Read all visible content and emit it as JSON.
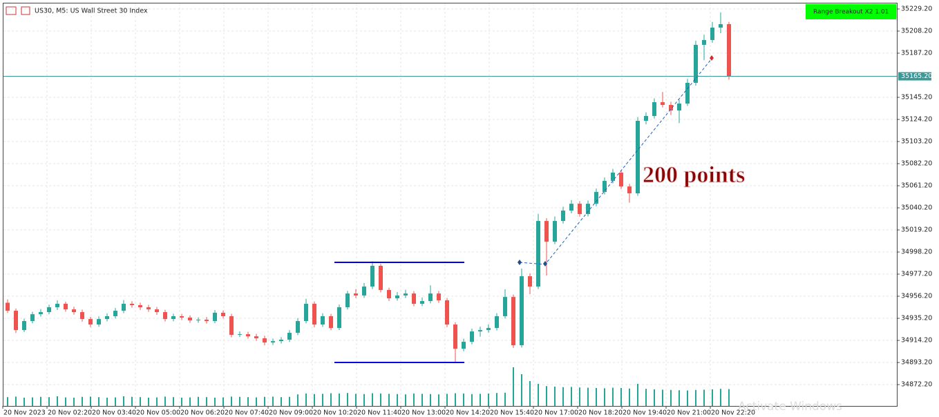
{
  "chart_data": {
    "type": "candlestick",
    "title": "US30, M5:  US Wall Street 30 Index",
    "indicator": "Range Breakout X2 1.01",
    "annotations": [
      "200 points"
    ],
    "watermark": "Activate Windows",
    "up_color": "#26a69a",
    "down_color": "#ef5350",
    "grid": true,
    "ylim": [
      34851.9,
      35234.45
    ],
    "yticks": [
      {
        "value": 35229.2,
        "label": "35229.20"
      },
      {
        "value": 35208.2,
        "label": "35208.20"
      },
      {
        "value": 35187.2,
        "label": "35187.20"
      },
      {
        "value": 35145.2,
        "label": "35145.20"
      },
      {
        "value": 35124.2,
        "label": "35124.20"
      },
      {
        "value": 35103.2,
        "label": "35103.20"
      },
      {
        "value": 35082.2,
        "label": "35082.20"
      },
      {
        "value": 35061.2,
        "label": "35061.20"
      },
      {
        "value": 35040.2,
        "label": "35040.20"
      },
      {
        "value": 35019.2,
        "label": "35019.20"
      },
      {
        "value": 34998.2,
        "label": "34998.20"
      },
      {
        "value": 34977.2,
        "label": "34977.20"
      },
      {
        "value": 34956.2,
        "label": "34956.20"
      },
      {
        "value": 34935.2,
        "label": "34935.20"
      },
      {
        "value": 34914.2,
        "label": "34914.20"
      },
      {
        "value": 34893.2,
        "label": "34893.20"
      },
      {
        "value": 34872.2,
        "label": "34872.20"
      }
    ],
    "current_price": {
      "value": 35165.2,
      "label": "35165.20"
    },
    "range_levels": [
      34988.4,
      34893.2
    ],
    "x_labels": [
      "20 Nov 2023",
      "20 Nov 02:20",
      "20 Nov 03:40",
      "20 Nov 05:00",
      "20 Nov 06:20",
      "20 Nov 07:40",
      "20 Nov 09:00",
      "20 Nov 10:20",
      "20 Nov 11:40",
      "20 Nov 13:00",
      "20 Nov 14:20",
      "20 Nov 15:40",
      "20 Nov 17:00",
      "20 Nov 18:20",
      "20 Nov 19:40",
      "20 Nov 21:00",
      "20 Nov 22:20"
    ],
    "open": [
      34950.0,
      34942.4,
      34924.0,
      34932.6,
      34939.1,
      34941.1,
      34945.7,
      34949.0,
      34943.7,
      34941.1,
      34934.5,
      34929.3,
      34934.5,
      34937.2,
      34942.4,
      34949.0,
      34947.7,
      34945.7,
      34943.7,
      34941.1,
      34934.5,
      34937.2,
      34935.9,
      34933.2,
      34933.9,
      34932.6,
      34940.5,
      34937.2,
      34919.5,
      34920.1,
      34918.1,
      34916.2,
      34912.2,
      34913.5,
      34914.9,
      34921.4,
      34932.6,
      34949.0,
      34929.3,
      34937.2,
      34926.0,
      34945.7,
      34958.8,
      34956.9,
      34965.4,
      34985.1,
      34962.1,
      34954.2,
      34956.9,
      34958.8,
      34949.0,
      34951.6,
      34958.8,
      34952.3,
      34929.3,
      34906.3,
      34912.9,
      34922.7,
      34924.0,
      34926.0,
      34937.2,
      34955.5,
      34909.6,
      34975.2,
      34965.4,
      35027.7,
      35008.0,
      35027.7,
      35037.6,
      35044.1,
      35034.3,
      35044.1,
      35055.3,
      35065.8,
      35073.7,
      35060.5,
      35054.0,
      35122.9,
      35127.5,
      35140.6,
      35138.0,
      35132.7,
      35139.3,
      35159.0,
      35195.1,
      35199.7,
      35211.5,
      35214.8
    ],
    "high": [
      34953.1,
      34944.5,
      34934.8,
      34941.5,
      34944.0,
      34948.2,
      34952.3,
      34951.0,
      34946.2,
      34943.4,
      34936.6,
      34937.0,
      34939.9,
      34945.0,
      34952.6,
      34951.4,
      34950.1,
      34948.0,
      34946.0,
      34943.3,
      34939.6,
      34939.4,
      34938.0,
      34936.1,
      34936.4,
      34943.0,
      34942.6,
      34939.5,
      34922.8,
      34922.4,
      34920.5,
      34918.7,
      34916.0,
      34917.3,
      34924.0,
      34935.3,
      34953.8,
      34951.2,
      34940.1,
      34939.4,
      34948.3,
      34961.2,
      34963.0,
      34968.8,
      34989.4,
      34987.0,
      34964.3,
      34960.2,
      34962.4,
      34961.0,
      34955.0,
      34966.5,
      34961.2,
      34954.6,
      34931.5,
      34915.8,
      34925.4,
      34927.3,
      34929.4,
      34940.1,
      34962.8,
      34957.8,
      34982.5,
      34978.0,
      35034.6,
      35030.4,
      35032.0,
      35041.3,
      35047.5,
      35046.6,
      35047.2,
      35058.6,
      35069.0,
      35077.2,
      35076.0,
      35063.0,
      35126.4,
      35131.0,
      35144.2,
      35150.3,
      35141.0,
      35142.9,
      35162.8,
      35199.0,
      35204.8,
      35216.9,
      35225.9,
      35217.0
    ],
    "low": [
      34940.2,
      34921.3,
      34922.1,
      34930.4,
      34936.8,
      34939.0,
      34943.1,
      34941.5,
      34938.7,
      34932.0,
      34926.8,
      34927.1,
      34932.3,
      34935.0,
      34940.1,
      34945.3,
      34943.2,
      34941.4,
      34938.5,
      34932.1,
      34932.4,
      34933.5,
      34930.9,
      34931.0,
      34930.2,
      34930.5,
      34935.0,
      34917.1,
      34917.4,
      34915.9,
      34913.8,
      34909.6,
      34909.9,
      34911.2,
      34912.8,
      34919.2,
      34930.5,
      34926.6,
      34927.0,
      34923.8,
      34924.1,
      34943.5,
      34954.4,
      34954.6,
      34963.0,
      34959.8,
      34951.6,
      34952.0,
      34954.5,
      34946.6,
      34946.8,
      34949.4,
      34949.9,
      34926.8,
      34893.4,
      34903.9,
      34910.5,
      34917.8,
      34921.6,
      34923.7,
      34935.0,
      34907.0,
      34907.4,
      34958.1,
      34963.0,
      34975.9,
      35005.6,
      35025.2,
      35035.0,
      35031.8,
      35032.0,
      35041.7,
      35052.9,
      35063.4,
      35058.0,
      35045.1,
      35051.6,
      35119.5,
      35125.0,
      35135.6,
      35128.4,
      35120.8,
      35137.0,
      35156.4,
      35180.5,
      35197.1,
      35206.2,
      35162.0
    ],
    "close": [
      34942.4,
      34924.0,
      34932.6,
      34939.1,
      34941.1,
      34945.7,
      34949.0,
      34943.7,
      34941.1,
      34934.5,
      34929.3,
      34934.5,
      34937.2,
      34942.4,
      34949.0,
      34947.7,
      34945.7,
      34943.7,
      34941.1,
      34934.5,
      34937.2,
      34935.9,
      34933.2,
      34933.9,
      34932.6,
      34940.5,
      34937.2,
      34919.5,
      34920.1,
      34918.1,
      34916.2,
      34912.2,
      34913.5,
      34914.9,
      34921.4,
      34932.6,
      34949.0,
      34929.3,
      34937.2,
      34926.0,
      34945.7,
      34958.8,
      34956.9,
      34965.4,
      34985.1,
      34962.1,
      34954.2,
      34956.9,
      34958.8,
      34949.0,
      34951.6,
      34958.8,
      34952.3,
      34929.3,
      34906.3,
      34912.9,
      34922.7,
      34924.0,
      34926.0,
      34937.2,
      34955.5,
      34909.6,
      34975.2,
      34965.4,
      35027.7,
      35008.0,
      35027.7,
      35037.6,
      35044.1,
      35034.3,
      35044.1,
      35055.3,
      35065.8,
      35073.7,
      35060.5,
      35054.0,
      35122.9,
      35127.5,
      35140.6,
      35138.0,
      35132.7,
      35139.3,
      35159.0,
      35195.1,
      35199.7,
      35211.5,
      35214.8,
      35165.2
    ],
    "volumes": [
      320,
      340,
      300,
      310,
      330,
      320,
      350,
      310,
      300,
      330,
      340,
      320,
      300,
      310,
      350,
      330,
      320,
      300,
      310,
      340,
      320,
      300,
      310,
      330,
      320,
      300,
      310,
      340,
      330,
      320,
      310,
      330,
      340,
      320,
      330,
      420,
      450,
      430,
      440,
      460,
      450,
      470,
      440,
      430,
      460,
      450,
      440,
      430,
      420,
      450,
      440,
      430,
      420,
      440,
      460,
      450,
      430,
      440,
      450,
      470,
      480,
      1400,
      1150,
      900,
      800,
      720,
      700,
      680,
      690,
      670,
      660,
      650,
      640,
      660,
      650,
      630,
      800,
      620,
      600,
      590,
      580,
      570,
      560,
      580,
      590,
      600,
      620,
      610
    ]
  }
}
